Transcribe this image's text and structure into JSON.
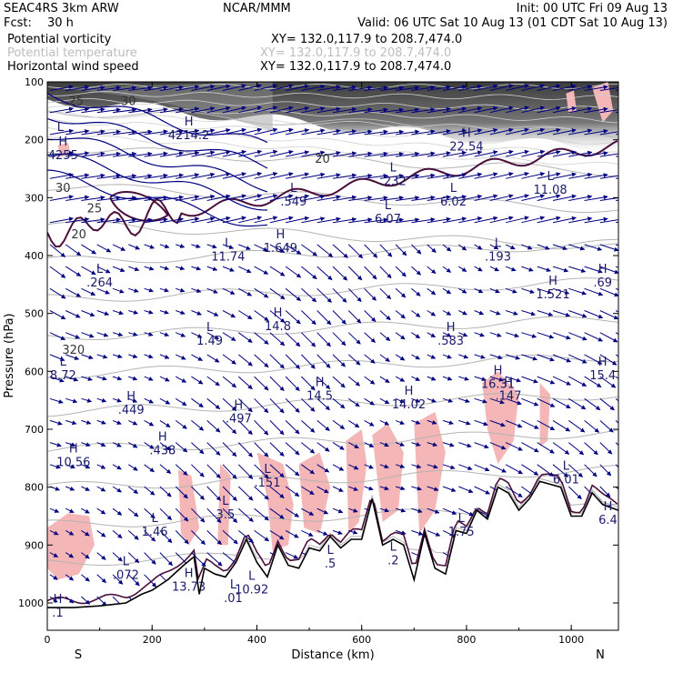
{
  "header": {
    "model": "SEAC4RS   3km ARW",
    "org": "NCAR/MMM",
    "init": "Init: 00 UTC Fri 09 Aug 13",
    "fcst_label": "Fcst:",
    "fcst_value": "30 h",
    "valid": "Valid: 06 UTC Sat 10 Aug 13 (01 CDT Sat 10 Aug 13)"
  },
  "legend": [
    {
      "name": "Potential vorticity",
      "xy": "XY= 132.0,117.9 to 208.7,474.0",
      "color": "#000000"
    },
    {
      "name": "Potential temperature",
      "xy": "XY= 132.0,117.9 to 208.7,474.0",
      "color": "#b8b8b8"
    },
    {
      "name": "Horizontal wind speed",
      "xy": "XY= 132.0,117.9 to 208.7,474.0",
      "color": "#000000"
    }
  ],
  "colors": {
    "wind_arrow": "#000080",
    "theta": "#b4b4b4",
    "pv_contour": "#4a0f3a",
    "pink_fill": "#f4b6b6",
    "jet_dark": "#555555",
    "ground": "#000000"
  },
  "chart_data": {
    "type": "cross-section",
    "xlabel": "Distance (km)",
    "ylabel": "Pressure (hPa)",
    "xlim": [
      0,
      1090
    ],
    "ylim": [
      1050,
      100
    ],
    "x_ticks": [
      "0",
      "200",
      "400",
      "600",
      "800",
      "1000"
    ],
    "x_tick_values": [
      0,
      200,
      400,
      600,
      800,
      1000
    ],
    "y_ticks": [
      "100",
      "200",
      "300",
      "400",
      "500",
      "600",
      "700",
      "800",
      "900",
      "1000"
    ],
    "y_tick_values": [
      100,
      200,
      300,
      400,
      500,
      600,
      700,
      800,
      900,
      1000
    ],
    "left_end": "S",
    "right_end": "N",
    "terrain": {
      "x": [
        0,
        50,
        100,
        150,
        180,
        200,
        230,
        260,
        280,
        290,
        300,
        320,
        340,
        360,
        380,
        400,
        420,
        440,
        460,
        480,
        500,
        520,
        540,
        560,
        580,
        600,
        620,
        640,
        660,
        680,
        700,
        720,
        740,
        760,
        780,
        800,
        820,
        840,
        860,
        880,
        900,
        920,
        940,
        960,
        980,
        1000,
        1020,
        1040,
        1060,
        1090
      ],
      "p": [
        1008,
        1008,
        1005,
        1000,
        985,
        978,
        960,
        935,
        920,
        985,
        940,
        950,
        955,
        930,
        890,
        930,
        955,
        900,
        935,
        940,
        905,
        910,
        885,
        905,
        890,
        890,
        820,
        900,
        890,
        900,
        960,
        880,
        940,
        950,
        875,
        880,
        840,
        855,
        800,
        810,
        840,
        820,
        790,
        795,
        800,
        850,
        850,
        810,
        830,
        840
      ]
    },
    "annotations": [
      {
        "label": "H",
        "value": "4255",
        "x": 30,
        "p": 210
      },
      {
        "label": "L",
        "value": "",
        "x": 25,
        "p": 185
      },
      {
        "label": "H",
        "value": "4214.2",
        "x": 270,
        "p": 175
      },
      {
        "label": "H",
        "value": "22.54",
        "x": 800,
        "p": 195
      },
      {
        "label": "L",
        "value": ".232",
        "x": 660,
        "p": 255
      },
      {
        "label": "L",
        "value": "6.02",
        "x": 775,
        "p": 290
      },
      {
        "label": "L",
        "value": "11.08",
        "x": 960,
        "p": 270
      },
      {
        "label": "L",
        "value": ".549",
        "x": 470,
        "p": 290
      },
      {
        "label": "L",
        "value": "6.07",
        "x": 650,
        "p": 320
      },
      {
        "label": "L",
        "value": "11.74",
        "x": 345,
        "p": 385
      },
      {
        "label": "H",
        "value": "1.649",
        "x": 445,
        "p": 370
      },
      {
        "label": "L",
        "value": ".193",
        "x": 860,
        "p": 385
      },
      {
        "label": "L",
        "value": ".264",
        "x": 100,
        "p": 430
      },
      {
        "label": "H",
        "value": "1.521",
        "x": 965,
        "p": 450
      },
      {
        "label": "H",
        "value": ".69",
        "x": 1060,
        "p": 430
      },
      {
        "label": "H",
        "value": "14.8",
        "x": 440,
        "p": 505
      },
      {
        "label": "L",
        "value": "1.49",
        "x": 310,
        "p": 530
      },
      {
        "label": "H",
        "value": ".583",
        "x": 770,
        "p": 530
      },
      {
        "label": "L",
        "value": "8.72",
        "x": 30,
        "p": 590
      },
      {
        "label": "H",
        "value": "14.5",
        "x": 520,
        "p": 625
      },
      {
        "label": "H",
        "value": "14.02",
        "x": 690,
        "p": 640
      },
      {
        "label": "H",
        "value": "16.31",
        "x": 860,
        "p": 605
      },
      {
        "label": "H",
        "value": ".147",
        "x": 880,
        "p": 625
      },
      {
        "label": "H",
        "value": "15.4",
        "x": 1060,
        "p": 590
      },
      {
        "label": "H",
        "value": ".449",
        "x": 160,
        "p": 650
      },
      {
        "label": "H",
        "value": ".497",
        "x": 365,
        "p": 665
      },
      {
        "label": "H",
        "value": ".438",
        "x": 220,
        "p": 720
      },
      {
        "label": "H",
        "value": "10.56",
        "x": 50,
        "p": 740
      },
      {
        "label": "L",
        "value": ".151",
        "x": 420,
        "p": 775
      },
      {
        "label": "L",
        "value": "6.01",
        "x": 990,
        "p": 770
      },
      {
        "label": "L",
        "value": "3.5",
        "x": 340,
        "p": 830
      },
      {
        "label": "L",
        "value": "1.46",
        "x": 205,
        "p": 860
      },
      {
        "label": "H",
        "value": "6.4",
        "x": 1070,
        "p": 840
      },
      {
        "label": "L",
        "value": "1.75",
        "x": 790,
        "p": 860
      },
      {
        "label": "L",
        "value": ".072",
        "x": 150,
        "p": 935
      },
      {
        "label": "H",
        "value": "13.73",
        "x": 270,
        "p": 955
      },
      {
        "label": "L",
        "value": "10.92",
        "x": 390,
        "p": 960
      },
      {
        "label": "L",
        "value": ".5",
        "x": 540,
        "p": 915
      },
      {
        "label": "L",
        "value": ".2",
        "x": 660,
        "p": 910
      },
      {
        "label": "L",
        "value": ".01",
        "x": 355,
        "p": 975
      },
      {
        "label": "H",
        "value": ".1",
        "x": 20,
        "p": 1000
      }
    ],
    "theta_labels": [
      {
        "value": "25",
        "x": 55,
        "p": 140
      },
      {
        "value": "30",
        "x": 155,
        "p": 140
      },
      {
        "value": "30",
        "x": 30,
        "p": 290
      },
      {
        "value": "25",
        "x": 90,
        "p": 325
      },
      {
        "value": "20",
        "x": 60,
        "p": 370
      },
      {
        "value": "20",
        "x": 525,
        "p": 240
      },
      {
        "value": "320",
        "x": 50,
        "p": 570
      }
    ]
  }
}
